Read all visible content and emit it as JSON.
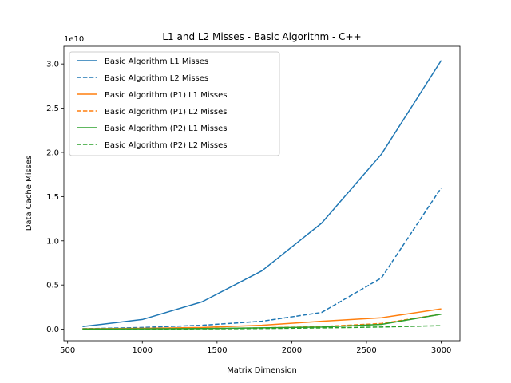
{
  "chart_data": {
    "type": "line",
    "title": "L1 and L2 Misses - Basic Algorithm - C++",
    "xlabel": "Matrix Dimension",
    "ylabel": "Data Cache Misses",
    "y_offset_label": "1e10",
    "x": [
      600,
      1000,
      1400,
      1800,
      2200,
      2600,
      3000
    ],
    "xlim": [
      475,
      3125
    ],
    "ylim": [
      -0.13,
      3.2
    ],
    "x_ticks": [
      500,
      1000,
      1500,
      2000,
      2500,
      3000
    ],
    "x_tick_labels": [
      "500",
      "1000",
      "1500",
      "2000",
      "2500",
      "3000"
    ],
    "y_ticks": [
      0,
      0.5,
      1.0,
      1.5,
      2.0,
      2.5,
      3.0
    ],
    "y_tick_labels": [
      "0.0",
      "0.5",
      "1.0",
      "1.5",
      "2.0",
      "2.5",
      "3.0"
    ],
    "y_unit_multiplier": 10000000000,
    "legend_position": "upper-left",
    "grid": false,
    "series": [
      {
        "name": "Basic Algorithm L1 Misses",
        "color": "#1f77b4",
        "dash": "solid",
        "values": [
          0.03,
          0.11,
          0.31,
          0.66,
          1.2,
          1.98,
          3.04
        ]
      },
      {
        "name": "Basic Algorithm L2 Misses",
        "color": "#1f77b4",
        "dash": "dashed",
        "values": [
          0.005,
          0.02,
          0.045,
          0.09,
          0.19,
          0.58,
          1.6
        ]
      },
      {
        "name": "Basic Algorithm (P1) L1 Misses",
        "color": "#ff7f0e",
        "dash": "solid",
        "values": [
          0.005,
          0.01,
          0.02,
          0.045,
          0.09,
          0.13,
          0.23
        ]
      },
      {
        "name": "Basic Algorithm (P1) L2 Misses",
        "color": "#ff7f0e",
        "dash": "dashed",
        "values": [
          0.001,
          0.003,
          0.008,
          0.015,
          0.03,
          0.065,
          0.17
        ]
      },
      {
        "name": "Basic Algorithm (P2) L1 Misses",
        "color": "#2ca02c",
        "dash": "solid",
        "values": [
          0.002,
          0.004,
          0.008,
          0.015,
          0.025,
          0.055,
          0.17
        ]
      },
      {
        "name": "Basic Algorithm (P2) L2 Misses",
        "color": "#2ca02c",
        "dash": "dashed",
        "values": [
          0.001,
          0.002,
          0.004,
          0.008,
          0.015,
          0.025,
          0.04
        ]
      }
    ]
  }
}
